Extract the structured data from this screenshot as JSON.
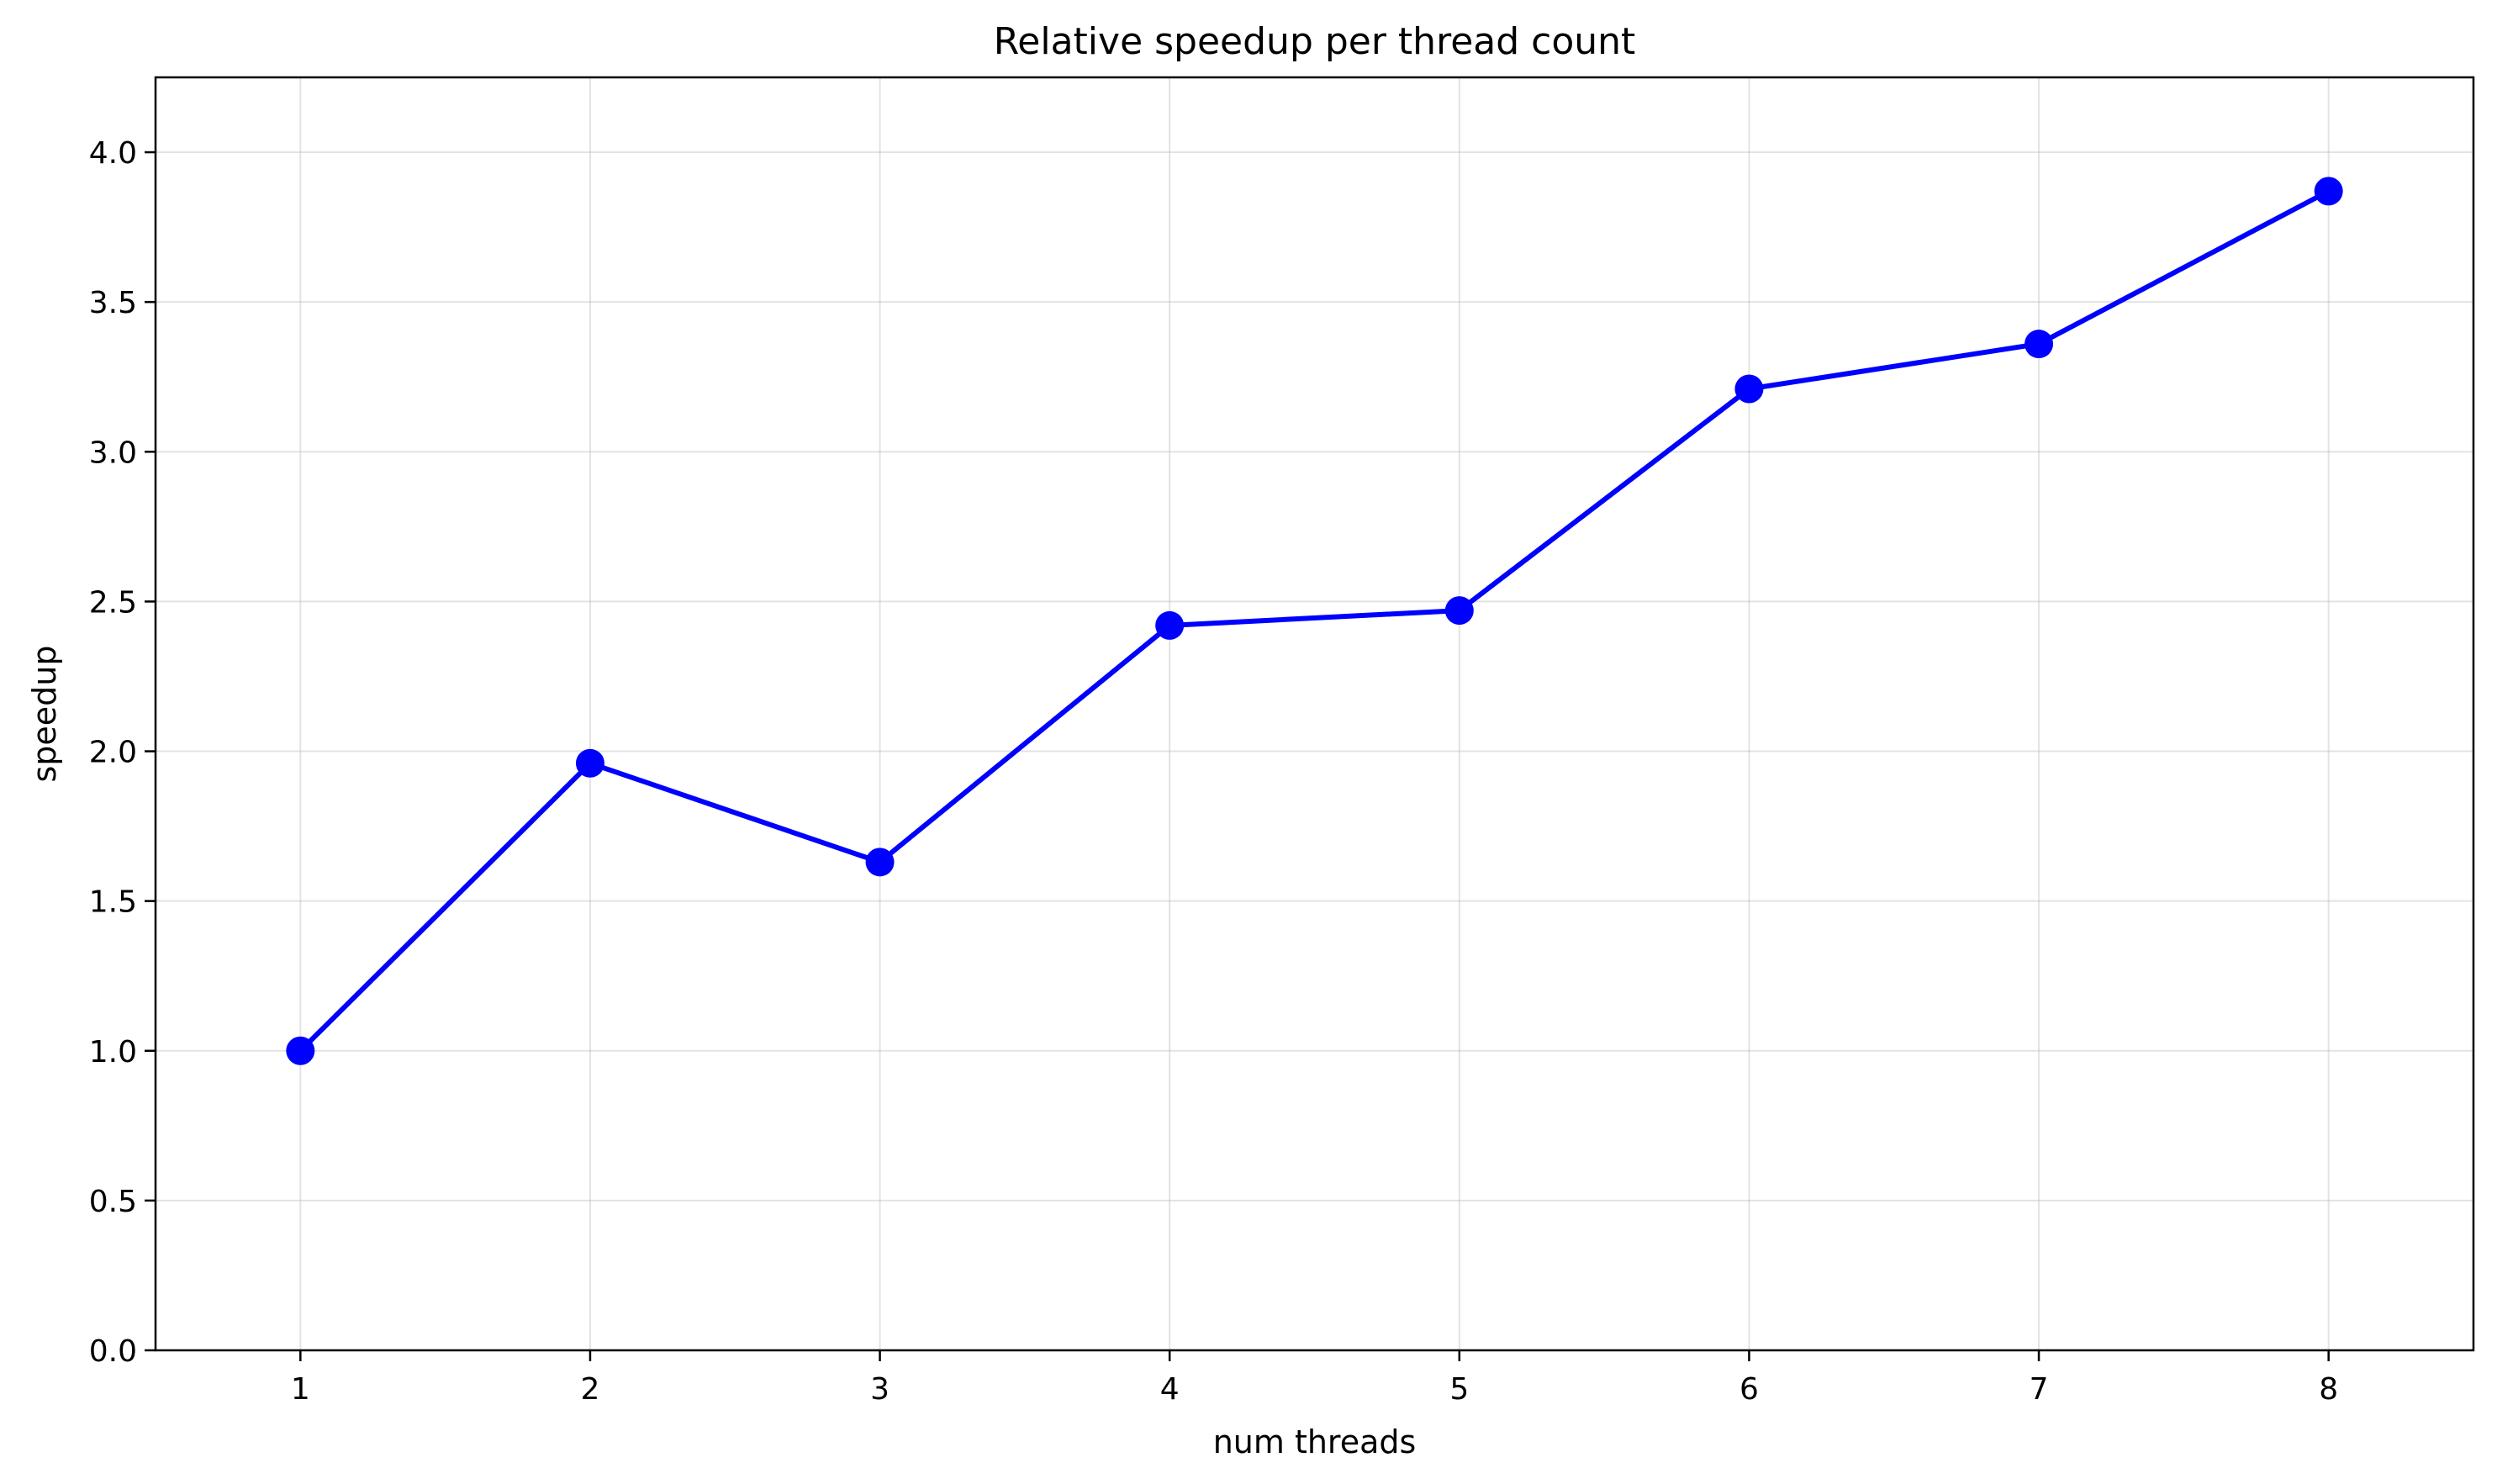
{
  "chart_data": {
    "type": "line",
    "title": "Relative speedup per thread count",
    "xlabel": "num threads",
    "ylabel": "speedup",
    "x": [
      1,
      2,
      3,
      4,
      5,
      6,
      7,
      8
    ],
    "series": [
      {
        "values": [
          1.0,
          1.96,
          1.63,
          2.42,
          2.47,
          3.21,
          3.36,
          3.87
        ],
        "color": "#0000ff",
        "marker": "circle"
      }
    ],
    "xticks": [
      "1",
      "2",
      "3",
      "4",
      "5",
      "6",
      "7",
      "8"
    ],
    "yticks": [
      "0.0",
      "0.5",
      "1.0",
      "1.5",
      "2.0",
      "2.5",
      "3.0",
      "3.5",
      "4.0"
    ],
    "xlim": [
      0.5,
      8.5
    ],
    "ylim": [
      0,
      4.25
    ],
    "grid": true,
    "legend": "none"
  }
}
